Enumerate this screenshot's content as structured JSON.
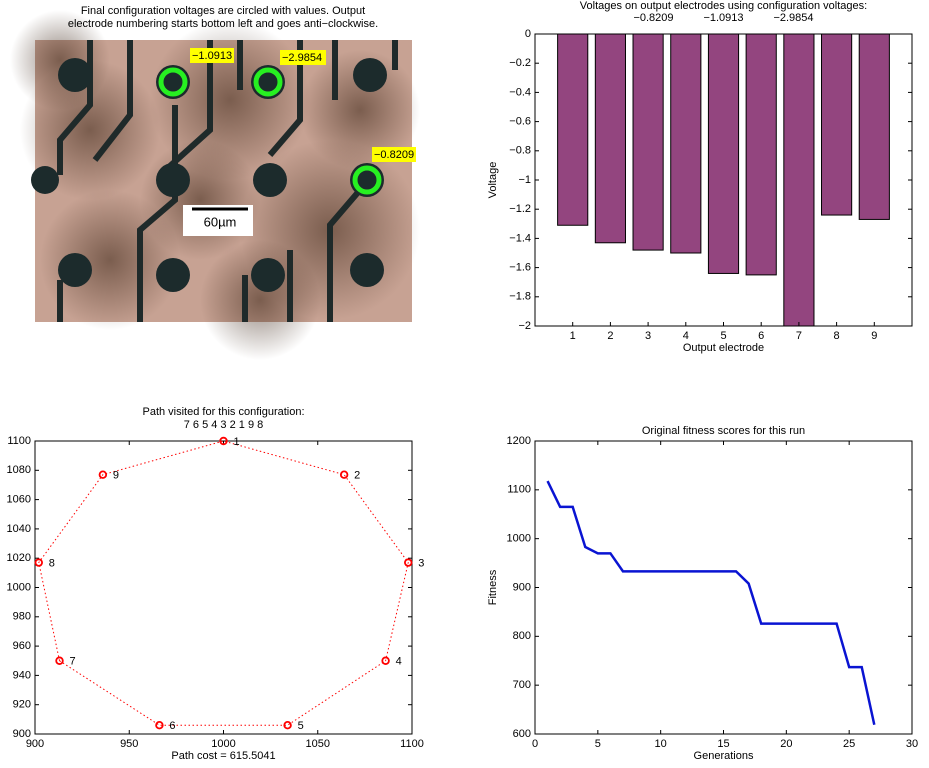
{
  "chart_data": [
    {
      "type": "image",
      "title": [
        "Final configuration voltages are circled with values. Output",
        "electrode numbering starts bottom left and goes anti−clockwise."
      ],
      "annotations": [
        "−1.0913",
        "−2.9854",
        "−0.8209"
      ],
      "scale_label": "60µm"
    },
    {
      "type": "bar",
      "title": "Voltages on output electrodes using configuration voltages:",
      "subtitle": [
        "−0.8209",
        "−1.0913",
        "−2.9854"
      ],
      "x_label": "Output electrode",
      "y_label": "Voltage",
      "categories": [
        "1",
        "2",
        "3",
        "4",
        "5",
        "6",
        "7",
        "8",
        "9"
      ],
      "values": [
        -1.31,
        -1.43,
        -1.48,
        -1.5,
        -1.64,
        -1.65,
        -2.0,
        -1.24,
        -1.27
      ],
      "color": "#93457f",
      "ylim": [
        -2,
        0
      ],
      "yticks": [
        0,
        {
          "value": -0.2,
          "label": "−0.2"
        },
        {
          "value": -0.4,
          "label": "−0.4"
        },
        {
          "value": -0.6,
          "label": "−0.6"
        },
        {
          "value": -0.8,
          "label": "−0.8"
        },
        {
          "value": -1,
          "label": "−1"
        },
        {
          "value": -1.2,
          "label": "−1.2"
        },
        {
          "value": -1.4,
          "label": "−1.4"
        },
        {
          "value": -1.6,
          "label": "−1.6"
        },
        {
          "value": -1.8,
          "label": "−1.8"
        },
        {
          "value": -2,
          "label": "−2"
        }
      ]
    },
    {
      "type": "scatter",
      "title": "Path visited for this configuration:",
      "subtitle": "7 6 5 4 3 2 1 9 8",
      "x_label": "Path cost = 615.5041",
      "point_labels": [
        "7",
        "6",
        "5",
        "4",
        "3",
        "2",
        "1",
        "9",
        "8"
      ],
      "x": [
        913,
        966,
        1034,
        1086,
        1098,
        1064,
        1000,
        936,
        902
      ],
      "y": [
        950,
        906,
        906,
        950,
        1017,
        1077,
        1100,
        1077,
        1017
      ],
      "color": "#ff0000",
      "closed": true,
      "xlim": [
        900,
        1100
      ],
      "xticks": [
        900,
        950,
        1000,
        1050,
        1100
      ],
      "ylim": [
        900,
        1100
      ],
      "yticks": [
        900,
        920,
        940,
        960,
        980,
        1000,
        1020,
        1040,
        1060,
        1080,
        1100
      ]
    },
    {
      "type": "line",
      "title": "Original fitness scores for this run",
      "x_label": "Generations",
      "y_label": "Fitness",
      "x": [
        1,
        2,
        3,
        4,
        5,
        6,
        7,
        8,
        9,
        10,
        11,
        12,
        13,
        14,
        15,
        16,
        17,
        18,
        19,
        20,
        21,
        22,
        23,
        24,
        25,
        26,
        27
      ],
      "values": [
        1118,
        1065,
        1065,
        983,
        970,
        970,
        933,
        933,
        933,
        933,
        933,
        933,
        933,
        933,
        933,
        933,
        908,
        826,
        826,
        826,
        826,
        826,
        826,
        826,
        737,
        737,
        619
      ],
      "color": "#0a14d2",
      "xlim": [
        0,
        30
      ],
      "xticks": [
        0,
        5,
        10,
        15,
        20,
        25,
        30
      ],
      "ylim": [
        600,
        1200
      ],
      "yticks": [
        600,
        700,
        800,
        900,
        1000,
        1100,
        1200
      ]
    }
  ]
}
